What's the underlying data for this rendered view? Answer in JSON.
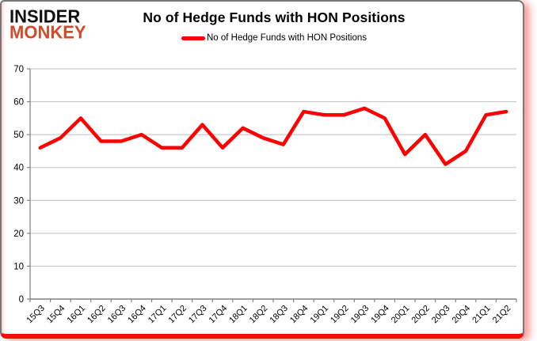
{
  "brand": {
    "line1": "INSIDER",
    "line2": "MONKEY",
    "accent_color": "#d24a2b"
  },
  "header": {
    "title": "No of Hedge Funds with HON Positions"
  },
  "legend": {
    "label": "No of Hedge Funds with HON Positions",
    "line_color": "#ff0000"
  },
  "colors": {
    "series_line": "#ff0000",
    "gridline": "#bfbfbf",
    "axis": "#808080",
    "label_text": "#000000",
    "card_border": "#777777",
    "card_bottom_border": "#f50d00"
  },
  "chart_data": {
    "type": "line",
    "title": "No of Hedge Funds with HON Positions",
    "xlabel": "",
    "ylabel": "",
    "categories": [
      "15Q3",
      "15Q4",
      "16Q1",
      "16Q2",
      "16Q3",
      "16Q4",
      "17Q1",
      "17Q2",
      "17Q3",
      "17Q4",
      "18Q1",
      "18Q2",
      "18Q3",
      "18Q4",
      "19Q1",
      "19Q2",
      "19Q3",
      "19Q4",
      "20Q1",
      "20Q2",
      "20Q3",
      "20Q4",
      "21Q1",
      "21Q2"
    ],
    "series": [
      {
        "name": "No of Hedge Funds with HON Positions",
        "color": "#ff0000",
        "values": [
          46,
          49,
          55,
          48,
          48,
          50,
          46,
          46,
          53,
          46,
          52,
          49,
          47,
          57,
          56,
          56,
          58,
          55,
          44,
          50,
          41,
          45,
          56,
          57
        ]
      }
    ],
    "ylim": [
      0,
      70
    ],
    "ytick_step": 10,
    "grid": true,
    "legend_position": "top"
  }
}
